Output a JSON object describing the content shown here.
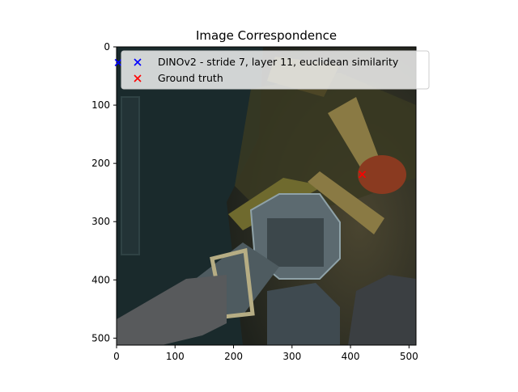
{
  "chart_data": {
    "type": "scatter",
    "title": "Image Correspondence",
    "xlabel": "",
    "ylabel": "",
    "xlim": [
      0,
      512
    ],
    "ylim": [
      512,
      0
    ],
    "xticks": [
      0,
      100,
      200,
      300,
      400,
      500
    ],
    "yticks": [
      0,
      100,
      200,
      300,
      400,
      500
    ],
    "background_image": "dark game scene: wooden planks, metallic lantern held in a gray hand, orange circular highlight",
    "grid": false,
    "legend_position": "top-right",
    "series": [
      {
        "name": "DINOv2 - stride 7, layer 11, euclidean similarity",
        "color": "#0000ff",
        "marker": "x",
        "x": [
          3
        ],
        "y": [
          27
        ]
      },
      {
        "name": "Ground truth",
        "color": "#ff0000",
        "marker": "x",
        "x": [
          420
        ],
        "y": [
          219
        ]
      }
    ]
  }
}
